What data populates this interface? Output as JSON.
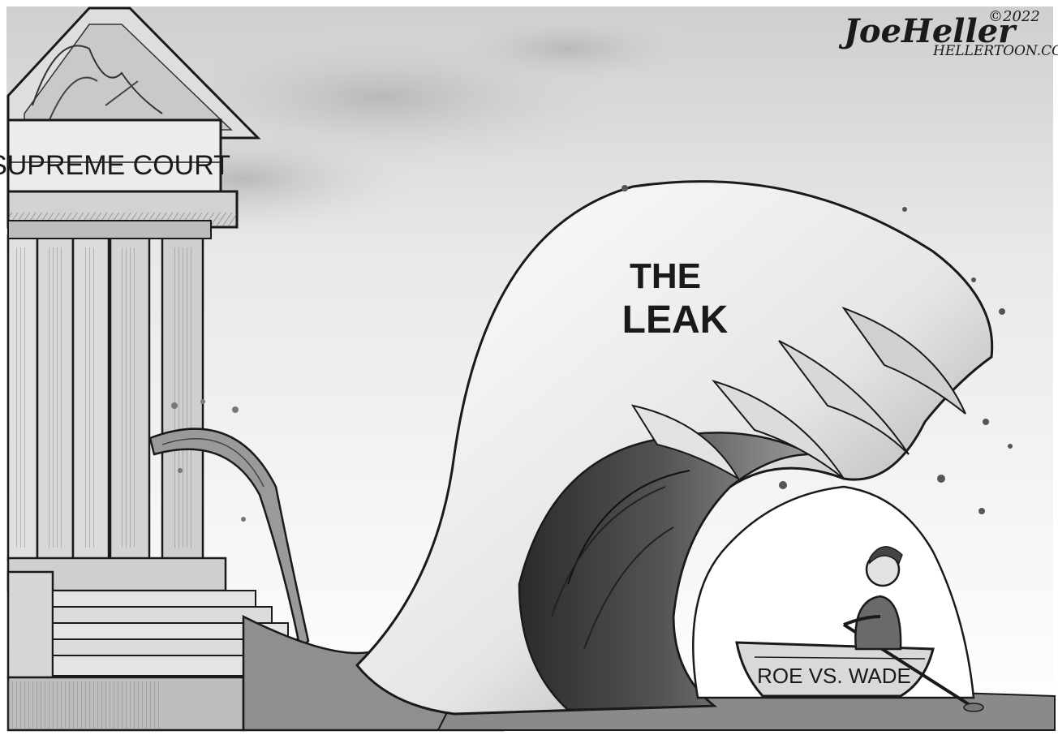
{
  "cartoon": {
    "building_label": "SUPREME COURT",
    "wave_label_line1": "THE",
    "wave_label_line2": "LEAK",
    "boat_label": "ROE VS. WADE",
    "signature": "JoeHeller",
    "copyright": "©2022",
    "website": "HELLERTOON.COM"
  },
  "icons": [
    "building-icon",
    "wave-icon",
    "rowboat-icon",
    "rower-figure"
  ]
}
